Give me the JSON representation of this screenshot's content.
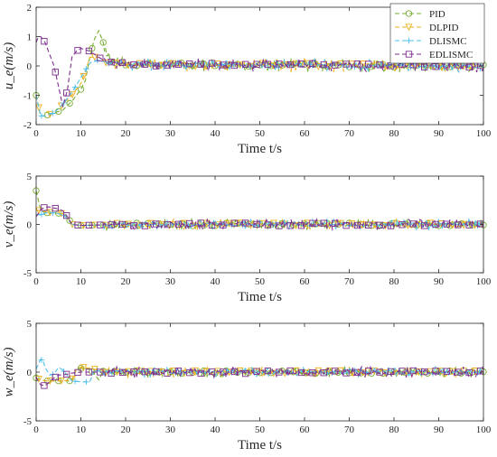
{
  "legend": {
    "entries": [
      "PID",
      "DLPID",
      "DLISMC",
      "EDLISMC"
    ],
    "placement": "top-right"
  },
  "colors": {
    "PID": "#77AC30",
    "DLPID": "#EDB120",
    "DLISMC": "#4DBEEE",
    "EDLISMC": "#7E2F8E"
  },
  "chart_data": [
    {
      "type": "line",
      "ylabel": "u_e(m/s)",
      "xlabel": "Time t/s",
      "xlim": [
        0,
        100
      ],
      "ylim": [
        -2,
        2
      ],
      "xticks": [
        "0",
        "10",
        "20",
        "30",
        "40",
        "50",
        "60",
        "70",
        "80",
        "90",
        "100"
      ],
      "yticks": [
        "-2",
        "-1",
        "0",
        "1",
        "2"
      ],
      "grid": false,
      "series": [
        {
          "name": "PID",
          "marker": "circle",
          "x": [
            0,
            1,
            2,
            4,
            6,
            8,
            10,
            11,
            12,
            13,
            14,
            15,
            16,
            18,
            20,
            100
          ],
          "y": [
            -1.0,
            -1.7,
            -1.7,
            -1.6,
            -1.5,
            -1.2,
            -0.8,
            -0.5,
            0.3,
            0.9,
            1.2,
            0.8,
            0.3,
            0.1,
            0.05,
            0.0
          ]
        },
        {
          "name": "DLPID",
          "marker": "triangle-down",
          "x": [
            0,
            1,
            2,
            4,
            6,
            8,
            10,
            11,
            12,
            14,
            16,
            20,
            100
          ],
          "y": [
            -1.0,
            -1.7,
            -1.7,
            -1.6,
            -1.3,
            -1.0,
            -0.6,
            -0.2,
            0.3,
            0.3,
            0.1,
            0.05,
            0.0
          ]
        },
        {
          "name": "DLISMC",
          "marker": "plus",
          "x": [
            0,
            1,
            2,
            4,
            6,
            8,
            10,
            12,
            14,
            16,
            20,
            100
          ],
          "y": [
            -1.0,
            -1.7,
            -1.7,
            -1.6,
            -1.3,
            -0.9,
            -0.4,
            0.1,
            0.2,
            0.1,
            0.05,
            0.0
          ]
        },
        {
          "name": "EDLISMC",
          "marker": "square",
          "x": [
            0,
            0.5,
            1,
            2,
            3,
            4,
            5,
            6,
            7,
            8,
            9,
            10,
            12,
            14,
            16,
            20,
            100
          ],
          "y": [
            0.8,
            1.0,
            1.0,
            0.8,
            0.4,
            0.0,
            -0.7,
            -1.4,
            -0.8,
            0.3,
            0.5,
            0.6,
            0.5,
            0.3,
            0.1,
            0.05,
            0.0
          ]
        }
      ]
    },
    {
      "type": "line",
      "ylabel": "v_e(m/s)",
      "xlabel": "Time t/s",
      "xlim": [
        0,
        100
      ],
      "ylim": [
        -5,
        5
      ],
      "xticks": [
        "0",
        "10",
        "20",
        "30",
        "40",
        "50",
        "60",
        "70",
        "80",
        "90",
        "100"
      ],
      "yticks": [
        "-5",
        "0",
        "5"
      ],
      "grid": false,
      "series": [
        {
          "name": "PID",
          "marker": "circle",
          "x": [
            0,
            0.5,
            1,
            2,
            4,
            6,
            7,
            8,
            10,
            20,
            100
          ],
          "y": [
            3.5,
            2.5,
            1.5,
            1.2,
            1.2,
            1.1,
            0.8,
            0.0,
            -0.1,
            0.0,
            0.0
          ]
        },
        {
          "name": "DLPID",
          "marker": "triangle-down",
          "x": [
            0,
            1,
            2,
            4,
            6,
            7,
            8,
            10,
            20,
            100
          ],
          "y": [
            1.5,
            1.4,
            1.3,
            1.2,
            1.1,
            0.6,
            0.0,
            -0.1,
            0.0,
            0.0
          ]
        },
        {
          "name": "DLISMC",
          "marker": "plus",
          "x": [
            0,
            1,
            2,
            4,
            6,
            7,
            8,
            10,
            20,
            100
          ],
          "y": [
            1.0,
            1.0,
            1.2,
            1.2,
            1.0,
            0.6,
            0.0,
            -0.1,
            0.0,
            0.0
          ]
        },
        {
          "name": "EDLISMC",
          "marker": "square",
          "x": [
            0,
            1,
            2,
            3,
            4,
            5,
            6,
            7,
            8,
            10,
            20,
            100
          ],
          "y": [
            0.8,
            1.5,
            1.8,
            1.8,
            1.7,
            1.6,
            1.4,
            0.8,
            0.0,
            -0.1,
            0.0,
            0.0
          ]
        }
      ]
    },
    {
      "type": "line",
      "ylabel": "w_e(m/s)",
      "xlabel": "Time t/s",
      "xlim": [
        0,
        100
      ],
      "ylim": [
        -5,
        5
      ],
      "xticks": [
        "0",
        "10",
        "20",
        "30",
        "40",
        "50",
        "60",
        "70",
        "80",
        "90",
        "100"
      ],
      "yticks": [
        "-5",
        "0",
        "5"
      ],
      "grid": false,
      "series": [
        {
          "name": "PID",
          "marker": "circle",
          "x": [
            0,
            1,
            2,
            4,
            6,
            8,
            9,
            10,
            12,
            13,
            14,
            15,
            20,
            100
          ],
          "y": [
            -0.6,
            -0.8,
            -0.9,
            -0.9,
            -0.9,
            -0.9,
            0.3,
            0.4,
            0.3,
            -0.2,
            -0.8,
            0.1,
            0.0,
            0.0
          ]
        },
        {
          "name": "DLPID",
          "marker": "triangle-down",
          "x": [
            0,
            1,
            2,
            4,
            6,
            8,
            9,
            10,
            12,
            14,
            16,
            20,
            100
          ],
          "y": [
            -0.6,
            -0.8,
            -0.9,
            -0.9,
            -0.9,
            -0.8,
            0.3,
            0.5,
            0.4,
            0.2,
            0.1,
            0.0,
            0.0
          ]
        },
        {
          "name": "DLISMC",
          "marker": "plus",
          "x": [
            0,
            1,
            1.5,
            2,
            3,
            4,
            5,
            6,
            8,
            10,
            12,
            13,
            14,
            20,
            100
          ],
          "y": [
            0.3,
            1.3,
            1.2,
            0.5,
            -0.3,
            -0.2,
            0.5,
            0.2,
            -0.9,
            -1.0,
            -1.0,
            0.2,
            0.1,
            0.0,
            0.0
          ]
        },
        {
          "name": "EDLISMC",
          "marker": "square",
          "x": [
            0,
            0.5,
            1,
            2,
            3,
            4,
            5,
            6,
            8,
            10,
            12,
            20,
            100
          ],
          "y": [
            -0.5,
            -1.0,
            -1.3,
            -1.4,
            -1.0,
            -0.6,
            -0.3,
            -0.3,
            -0.1,
            0.0,
            0.0,
            0.0,
            0.0
          ]
        }
      ]
    }
  ]
}
